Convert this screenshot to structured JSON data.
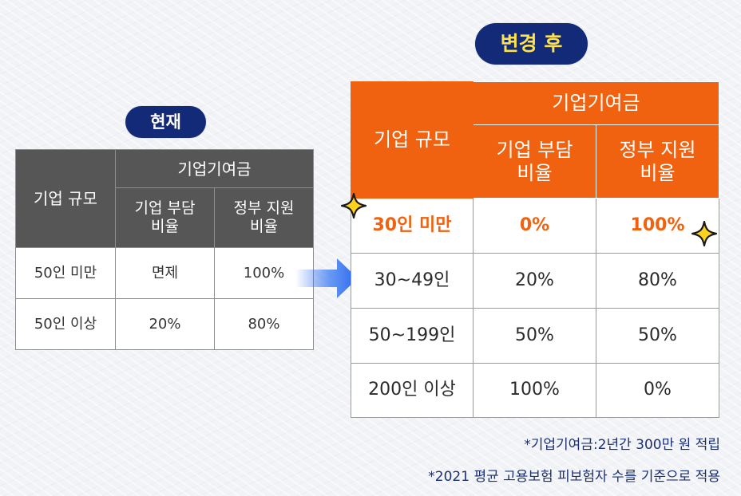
{
  "labels": {
    "current": "현재",
    "after": "변경 후"
  },
  "current_table": {
    "h_size": "기업 규모",
    "h_group": "기업기여금",
    "h_company_1": "기업 부담",
    "h_company_2": "비율",
    "h_gov_1": "정부 지원",
    "h_gov_2": "비율",
    "rows": [
      {
        "size": "50인 미만",
        "company": "면제",
        "gov": "100%"
      },
      {
        "size": "50인 이상",
        "company": "20%",
        "gov": "80%"
      }
    ]
  },
  "after_table": {
    "h_size": "기업 규모",
    "h_group": "기업기여금",
    "h_company_1": "기업 부담",
    "h_company_2": "비율",
    "h_gov_1": "정부 지원",
    "h_gov_2": "비율",
    "rows": [
      {
        "size": "30인 미만",
        "company": "0%",
        "gov": "100%"
      },
      {
        "size": "30~49인",
        "company": "20%",
        "gov": "80%"
      },
      {
        "size": "50~199인",
        "company": "50%",
        "gov": "50%"
      },
      {
        "size": "200인 이상",
        "company": "100%",
        "gov": "0%"
      }
    ]
  },
  "notes": {
    "line1": "*기업기여금:2년간 300만 원 적립",
    "line2": "*2021 평균 고용보험 피보험자 수를 기준으로 적용"
  },
  "colors": {
    "navy": "#122a78",
    "orange": "#f0620f",
    "gray_header": "#565656",
    "star_yellow": "#ffd21f"
  }
}
